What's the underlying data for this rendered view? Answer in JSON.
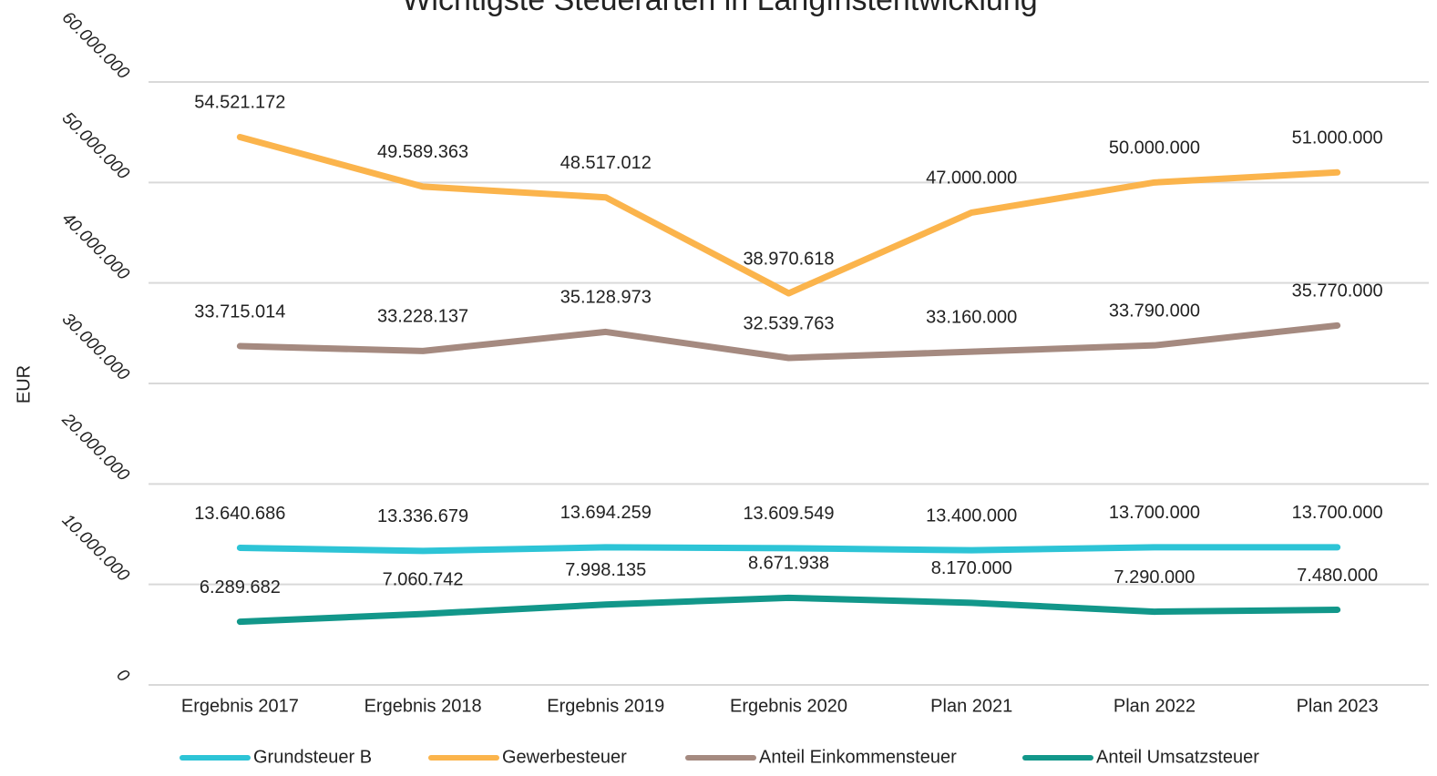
{
  "chart_data": {
    "type": "line",
    "title": "Wichtigste Steuerarten in Langfristentwicklung",
    "y_label": "EUR",
    "categories": [
      "Ergebnis 2017",
      "Ergebnis 2018",
      "Ergebnis 2019",
      "Ergebnis 2020",
      "Plan 2021",
      "Plan 2022",
      "Plan 2023"
    ],
    "ylim": [
      0,
      60000000
    ],
    "yticks": [
      0,
      {
        "value": 10000000,
        "label": "10.000.000"
      },
      {
        "value": 20000000,
        "label": "20.000.000"
      },
      {
        "value": 30000000,
        "label": "30.000.000"
      },
      {
        "value": 40000000,
        "label": "40.000.000"
      },
      {
        "value": 50000000,
        "label": "50.000.000"
      },
      {
        "value": 60000000,
        "label": "60.000.000"
      }
    ],
    "grid": true,
    "legend": "bottom",
    "series": [
      {
        "name": "Grundsteuer B",
        "color": "#2dc4d6",
        "values": [
          13640686,
          13336679,
          13694259,
          13609549,
          13400000,
          13700000,
          13700000
        ],
        "value_labels": [
          "13.640.686",
          "13.336.679",
          "13.694.259",
          "13.609.549",
          "13.400.000",
          "13.700.000",
          "13.700.000"
        ]
      },
      {
        "name": "Gewerbesteuer",
        "color": "#fbb44c",
        "values": [
          54521172,
          49589363,
          48517012,
          38970618,
          47000000,
          50000000,
          51000000
        ],
        "value_labels": [
          "54.521.172",
          "49.589.363",
          "48.517.012",
          "38.970.618",
          "47.000.000",
          "50.000.000",
          "51.000.000"
        ]
      },
      {
        "name": "Anteil Einkommensteuer",
        "color": "#a58a80",
        "values": [
          33715014,
          33228137,
          35128973,
          32539763,
          33160000,
          33790000,
          35770000
        ],
        "value_labels": [
          "33.715.014",
          "33.228.137",
          "35.128.973",
          "32.539.763",
          "33.160.000",
          "33.790.000",
          "35.770.000"
        ]
      },
      {
        "name": "Anteil Umsatzsteuer",
        "color": "#12978a",
        "values": [
          6289682,
          7060742,
          7998135,
          8671938,
          8170000,
          7290000,
          7480000
        ],
        "value_labels": [
          "6.289.682",
          "7.060.742",
          "7.998.135",
          "8.671.938",
          "8.170.000",
          "7.290.000",
          "7.480.000"
        ]
      }
    ]
  }
}
